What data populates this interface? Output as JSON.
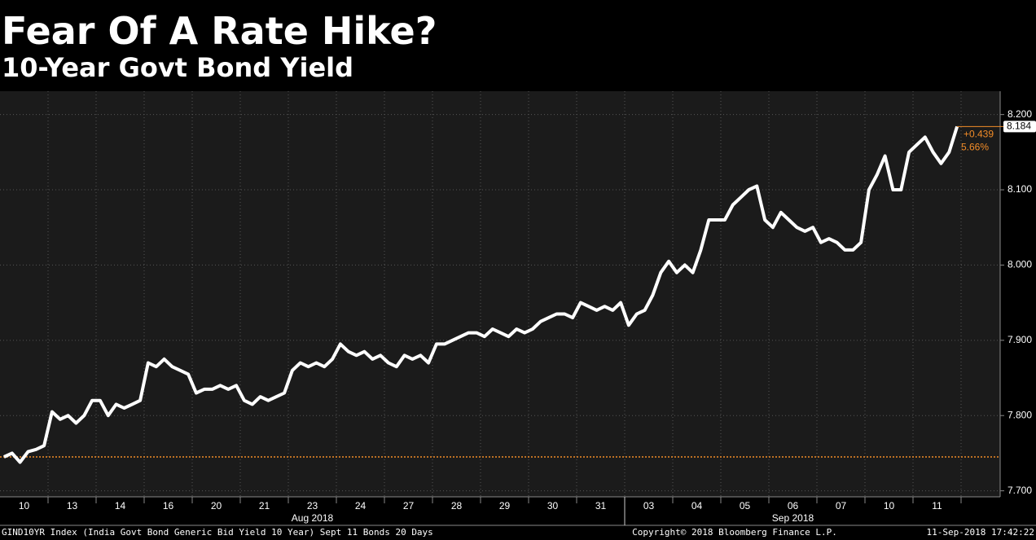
{
  "chart_data": {
    "type": "line",
    "title": "Fear Of A Rate Hike?",
    "subtitle": "10-Year Govt Bond Yield",
    "categories": [
      null,
      null,
      null,
      "10",
      null,
      null,
      null,
      null,
      null,
      "13",
      null,
      null,
      null,
      null,
      null,
      "14",
      null,
      null,
      null,
      null,
      null,
      "16",
      null,
      null,
      null,
      null,
      null,
      "20",
      null,
      null,
      null,
      null,
      null,
      "21",
      null,
      null,
      null,
      null,
      null,
      "23",
      null,
      null,
      null,
      null,
      null,
      "24",
      null,
      null,
      null,
      null,
      null,
      "27",
      null,
      null,
      null,
      null,
      null,
      "28",
      null,
      null,
      null,
      null,
      null,
      "29",
      null,
      null,
      null,
      null,
      null,
      "30",
      null,
      null,
      null,
      null,
      null,
      "31",
      null,
      null,
      null,
      null,
      null,
      "03",
      null,
      null,
      null,
      null,
      null,
      "04",
      null,
      null,
      null,
      null,
      null,
      "05",
      null,
      null,
      null,
      null,
      null,
      "06",
      null,
      null,
      null,
      null,
      null,
      "07",
      null,
      null,
      null,
      null,
      null,
      "10",
      null,
      null,
      null,
      null,
      null,
      "11",
      null,
      null
    ],
    "month_labels": [
      "Aug 2018",
      "Sep 2018"
    ],
    "series": [
      {
        "name": "GIND10YR Index",
        "color": "#ffffff",
        "values": [
          7.745,
          7.75,
          7.738,
          7.752,
          7.755,
          7.76,
          7.805,
          7.795,
          7.8,
          7.79,
          7.8,
          7.82,
          7.82,
          7.8,
          7.815,
          7.81,
          7.815,
          7.82,
          7.87,
          7.865,
          7.875,
          7.865,
          7.86,
          7.855,
          7.83,
          7.835,
          7.835,
          7.84,
          7.835,
          7.84,
          7.82,
          7.815,
          7.825,
          7.82,
          7.825,
          7.83,
          7.86,
          7.87,
          7.865,
          7.87,
          7.865,
          7.875,
          7.895,
          7.885,
          7.88,
          7.885,
          7.875,
          7.88,
          7.87,
          7.865,
          7.88,
          7.875,
          7.88,
          7.87,
          7.895,
          7.895,
          7.9,
          7.905,
          7.91,
          7.91,
          7.905,
          7.915,
          7.91,
          7.905,
          7.915,
          7.91,
          7.915,
          7.925,
          7.93,
          7.935,
          7.935,
          7.93,
          7.95,
          7.945,
          7.94,
          7.945,
          7.94,
          7.95,
          7.92,
          7.935,
          7.94,
          7.96,
          7.99,
          8.005,
          7.99,
          8.0,
          7.99,
          8.02,
          8.06,
          8.06,
          8.06,
          8.08,
          8.09,
          8.1,
          8.105,
          8.06,
          8.05,
          8.07,
          8.06,
          8.05,
          8.045,
          8.05,
          8.03,
          8.035,
          8.03,
          8.02,
          8.02,
          8.03,
          8.1,
          8.12,
          8.145,
          8.1,
          8.1,
          8.15,
          8.16,
          8.17,
          8.15,
          8.135,
          8.15,
          8.184
        ]
      }
    ],
    "last_value": 8.184,
    "change": "+0.439",
    "change_pct": "5.66%",
    "reference_line": 7.745,
    "reference_color": "#f28c28",
    "ylim": [
      7.692,
      8.231
    ],
    "yticks": [
      {
        "value": 7.7,
        "label": "7.700"
      },
      {
        "value": 7.8,
        "label": "7.800"
      },
      {
        "value": 7.9,
        "label": "7.900"
      },
      {
        "value": 8.0,
        "label": "8.000"
      },
      {
        "value": 8.1,
        "label": "8.100"
      },
      {
        "value": 8.2,
        "label": "8.200"
      }
    ],
    "grid": true,
    "footer_left": "GIND10YR Index (India Govt Bond Generic Bid Yield 10 Year) Sept 11 Bonds 20 Days",
    "footer_center": "Copyright© 2018 Bloomberg Finance L.P.",
    "footer_right": "11-Sep-2018 17:42:22"
  }
}
